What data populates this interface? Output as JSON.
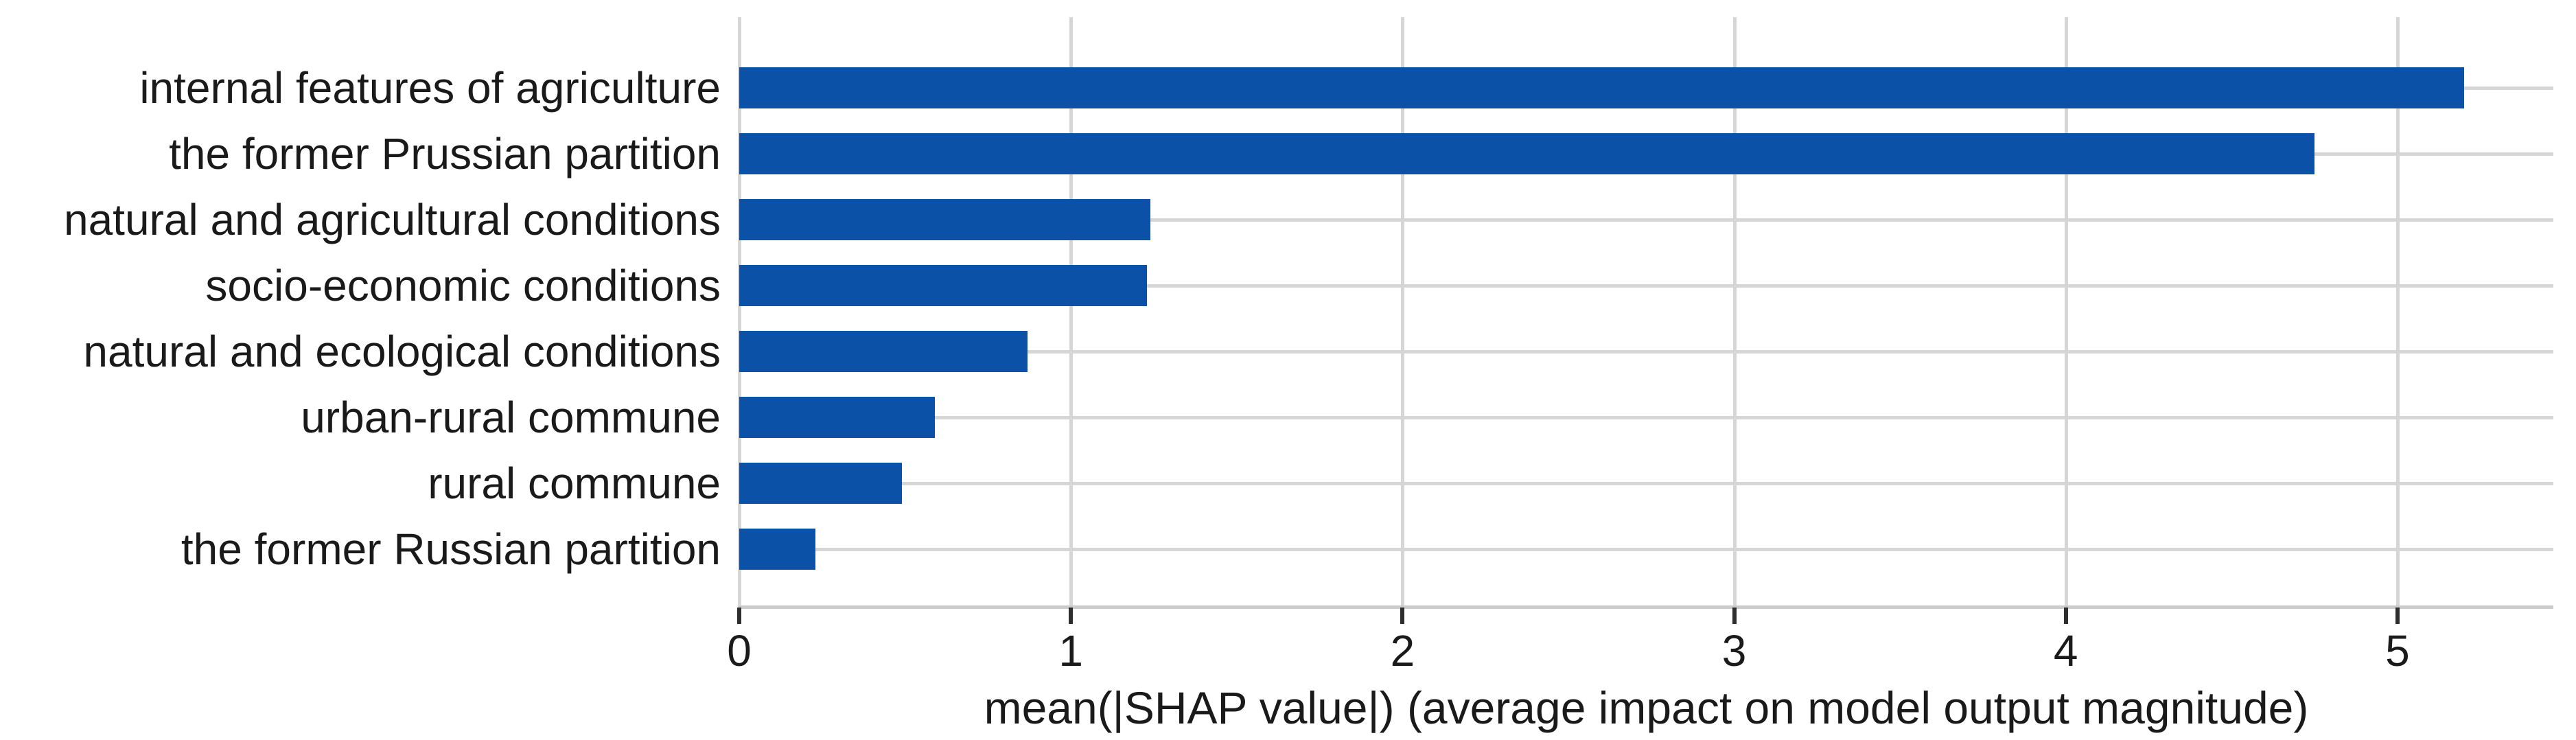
{
  "chart_data": {
    "type": "bar",
    "orientation": "horizontal",
    "title": "",
    "xlabel": "mean(|SHAP value|) (average impact on model output magnitude)",
    "ylabel": "",
    "categories": [
      "internal features of agriculture",
      "the former Prussian partition",
      "natural and agricultural conditions",
      "socio-economic conditions",
      "natural and ecological conditions",
      "urban-rural commune",
      "rural commune",
      "the former Russian partition"
    ],
    "values": [
      5.2,
      4.75,
      1.24,
      1.23,
      0.87,
      0.59,
      0.49,
      0.23
    ],
    "x_ticks": [
      0,
      1,
      2,
      3,
      4,
      5
    ],
    "xlim": [
      0,
      5.47
    ],
    "grid": true,
    "legend": false,
    "colors": {
      "bar": "#0b51a8",
      "gridline": "#d6d6d6",
      "axis_line": "#cbcbcb",
      "tick_mark": "#2e2e2e",
      "text": "#1a1a1a"
    }
  }
}
